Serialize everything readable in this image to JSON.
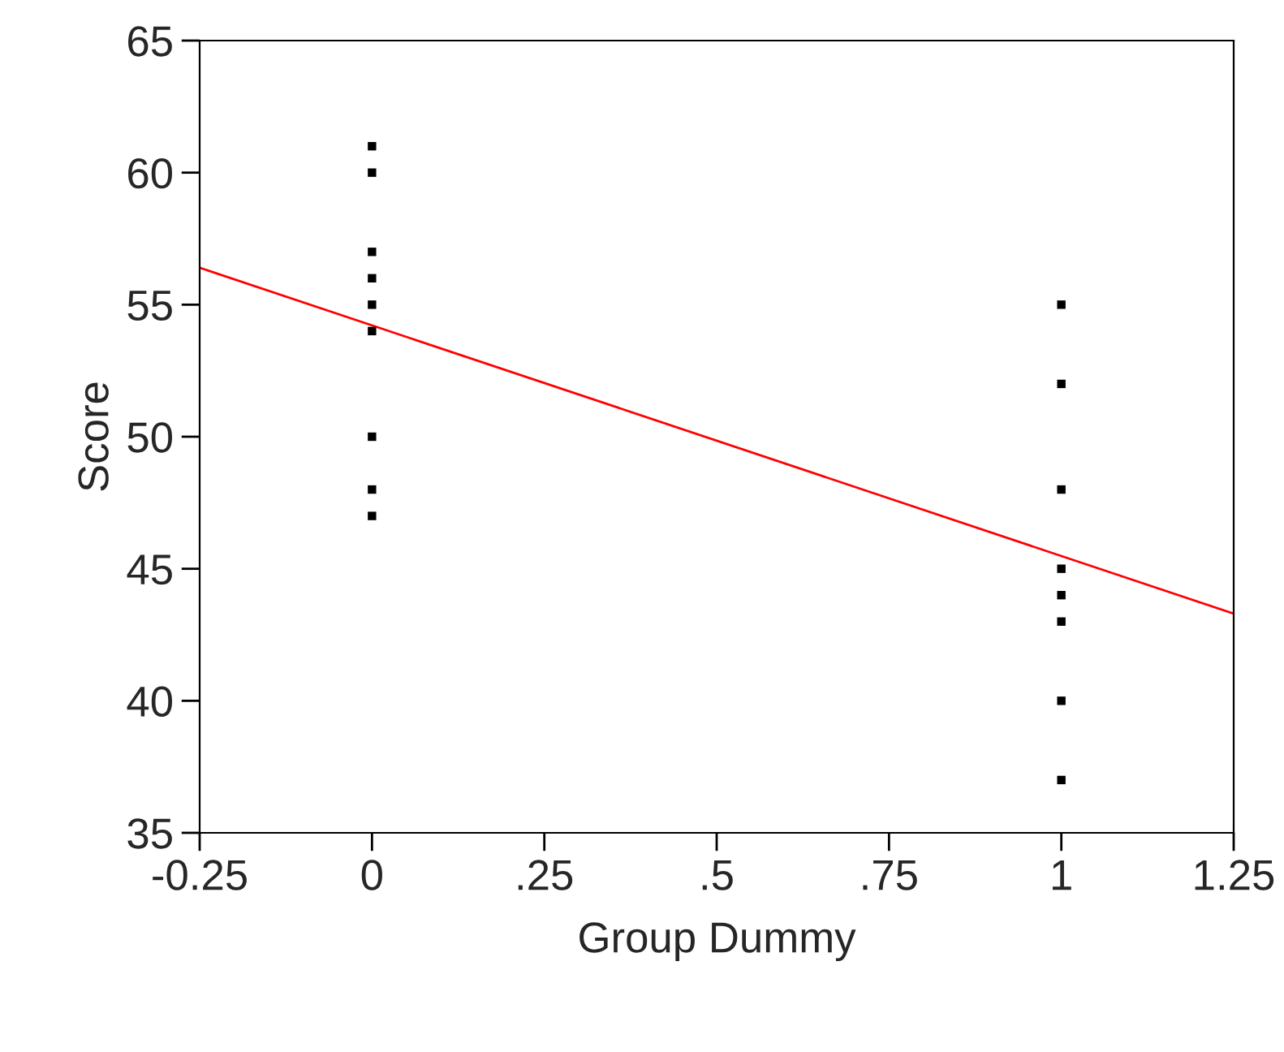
{
  "chart_data": {
    "type": "scatter",
    "xlabel": "Group Dummy",
    "ylabel": "Score",
    "series": [
      {
        "color": "#000000",
        "marker": "square",
        "x": [
          0,
          0,
          0,
          0,
          0,
          0,
          0,
          0,
          0,
          1,
          1,
          1,
          1,
          1,
          1,
          1,
          1
        ],
        "values": [
          61,
          60,
          57,
          56,
          55,
          54,
          50,
          48,
          47,
          55,
          52,
          48,
          45,
          44,
          43,
          40,
          37
        ]
      },
      {
        "type": "line",
        "color": "#ff0000",
        "marker": "none",
        "line_style": "solid",
        "x": [
          -0.25,
          1.25
        ],
        "values": [
          56.4,
          43.3
        ]
      }
    ],
    "xlim": [
      -0.25,
      1.25
    ],
    "xticks": [
      -0.25,
      0,
      {
        "value": 0.25,
        "label": ".25"
      },
      {
        "value": 0.5,
        "label": ".5"
      },
      {
        "value": 0.75,
        "label": ".75"
      },
      1,
      1.25
    ],
    "ylim": [
      35,
      65
    ],
    "yticks": [
      35,
      40,
      45,
      50,
      55,
      60,
      65
    ],
    "grid": false,
    "legend": false
  }
}
